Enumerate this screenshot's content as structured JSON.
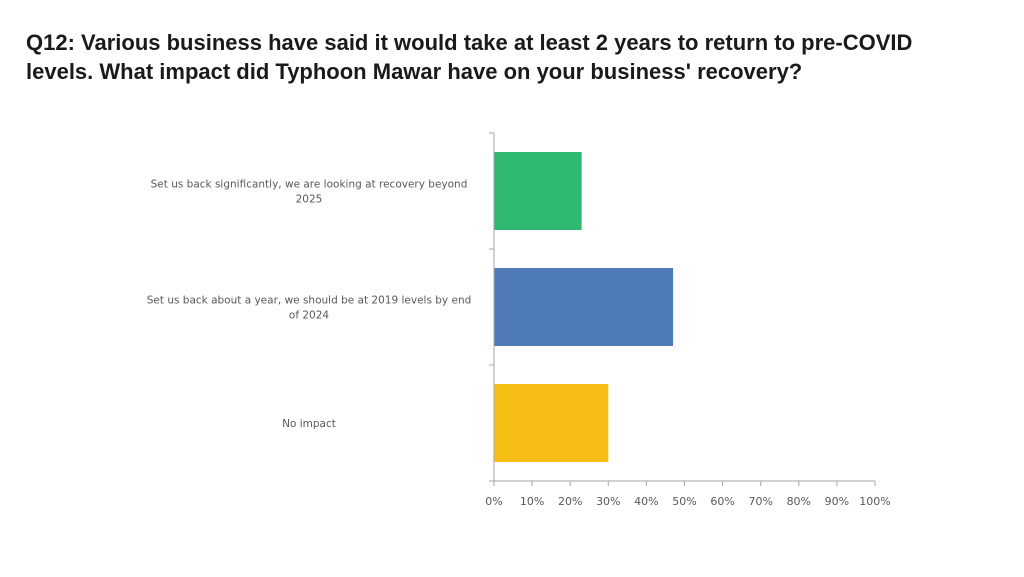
{
  "slide": {
    "title": "Q12: Various business have said it would take at least 2 years to return to pre-COVID levels. What impact did Typhoon Mawar have on your business' recovery?"
  },
  "chart_data": {
    "type": "bar",
    "orientation": "horizontal",
    "categories": [
      [
        "Set us back significantly, we are looking at recovery beyond",
        "2025"
      ],
      [
        "Set us back about a year, we should be at 2019 levels by end",
        "of 2024"
      ],
      [
        "No impact"
      ]
    ],
    "values": [
      23,
      47,
      30
    ],
    "colors": [
      "#2eb872",
      "#4e7bb8",
      "#f7be16"
    ],
    "xlim": [
      0,
      100
    ],
    "x_ticks": [
      "0%",
      "10%",
      "20%",
      "30%",
      "40%",
      "50%",
      "60%",
      "70%",
      "80%",
      "90%",
      "100%"
    ],
    "grid": false,
    "legend": "none",
    "xlabel": "",
    "ylabel": ""
  }
}
